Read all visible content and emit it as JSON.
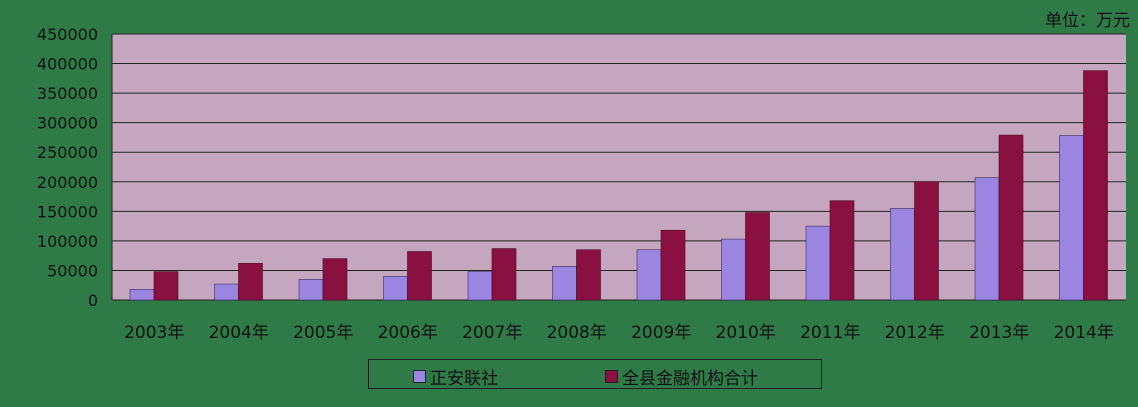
{
  "unit_label": "单位：万元",
  "colors": {
    "background": "#2e7b47",
    "plot_bg": "#c4a6bf",
    "series1": "#9a85e0",
    "series2": "#8b1042",
    "grid": "#222222"
  },
  "chart_data": {
    "type": "bar",
    "categories": [
      "2003年",
      "2004年",
      "2005年",
      "2006年",
      "2007年",
      "2008年",
      "2009年",
      "2010年",
      "2011年",
      "2012年",
      "2013年",
      "2014年"
    ],
    "series": [
      {
        "name": "正安联社",
        "values": [
          18000,
          27000,
          35000,
          40000,
          48000,
          57000,
          85000,
          103000,
          125000,
          155000,
          207000,
          278000
        ]
      },
      {
        "name": "全县金融机构合计",
        "values": [
          48000,
          62000,
          70000,
          82000,
          87000,
          85000,
          118000,
          148000,
          168000,
          200000,
          279000,
          388000
        ]
      }
    ],
    "y_ticks": [
      "450000",
      "400000",
      "350000",
      "300000",
      "250000",
      "200000",
      "150000",
      "100000",
      "50000",
      "0"
    ],
    "ylim": [
      0,
      450000
    ],
    "grid": true,
    "legend_position": "bottom"
  }
}
